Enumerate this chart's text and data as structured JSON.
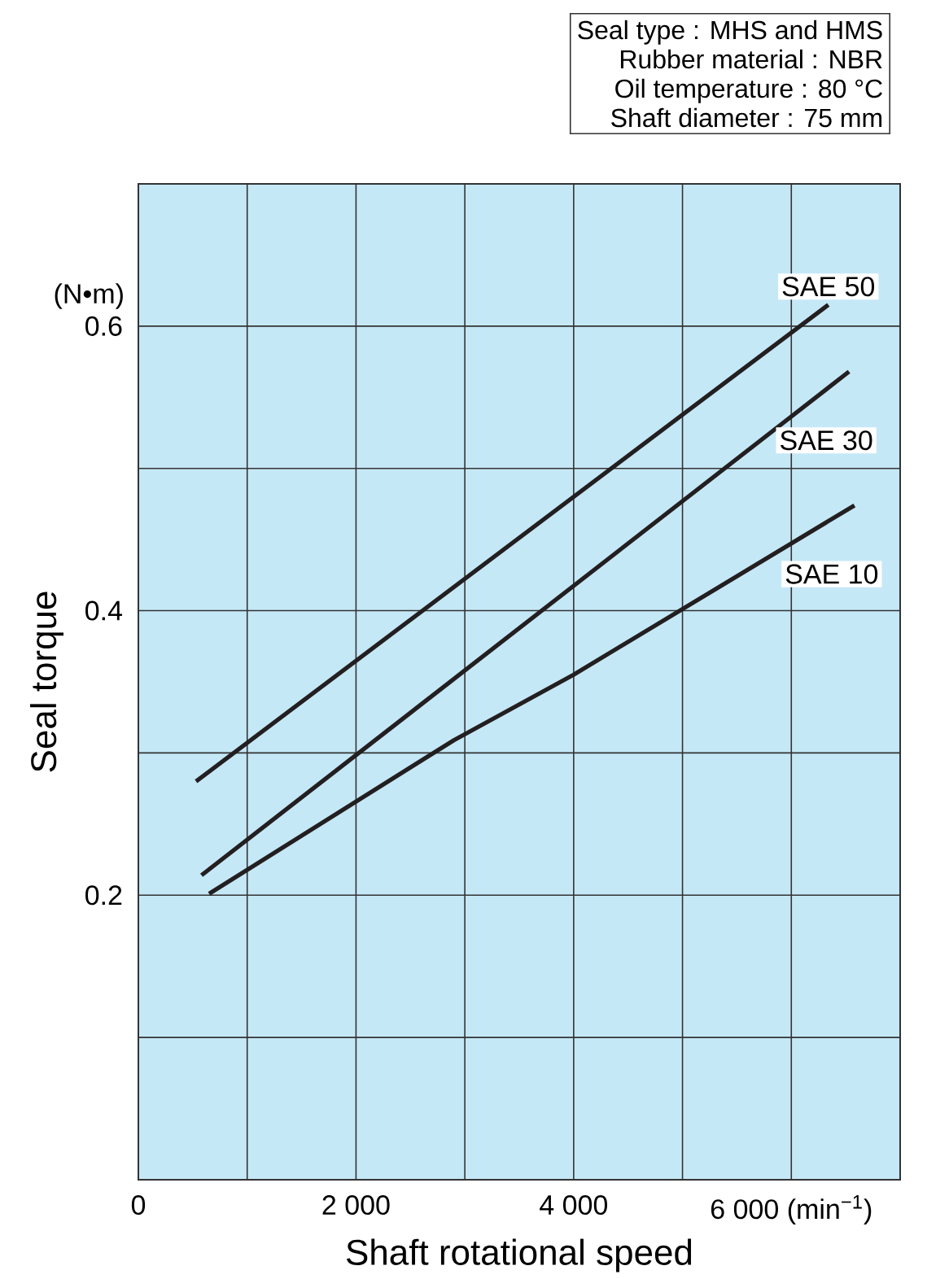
{
  "chart_data": {
    "type": "line",
    "xlabel": "Shaft rotational speed",
    "ylabel": "Seal torque",
    "xlim": [
      0,
      7000
    ],
    "ylim": [
      0,
      0.7
    ],
    "xticks": [
      0,
      {
        "value": 1000,
        "label": null
      },
      {
        "value": 2000,
        "label": "2 000"
      },
      {
        "value": 3000,
        "label": null
      },
      {
        "value": 4000,
        "label": "4 000"
      },
      {
        "value": 5000,
        "label": null
      },
      {
        "value": 6000,
        "label": "6 000 (min$^{−1}$)"
      }
    ],
    "yticks": [
      {
        "value": 0.1,
        "label": null
      },
      0.2,
      {
        "value": 0.3,
        "label": null
      },
      0.4,
      {
        "value": 0.5,
        "label": null
      },
      0.6
    ],
    "grid": true,
    "marker": "none",
    "line_style": "solid",
    "annotations": [
      "Seal type : MHS and HMS",
      "Rubber material : NBR",
      "Oil temperature : 80 °C",
      "Shaft diameter : 75 mm",
      "(N•m)"
    ],
    "series": [
      {
        "name": "SAE 50",
        "color": "#231f20",
        "x": [
          530,
          6340
        ],
        "values": [
          0.28,
          0.615
        ]
      },
      {
        "name": "SAE 30",
        "color": "#231f20",
        "x": [
          580,
          6530
        ],
        "values": [
          0.214,
          0.568
        ]
      },
      {
        "name": "SAE 10",
        "color": "#231f20",
        "x": [
          650,
          2900,
          4000,
          6580
        ],
        "values": [
          0.201,
          0.309,
          0.355,
          0.474
        ]
      }
    ]
  }
}
